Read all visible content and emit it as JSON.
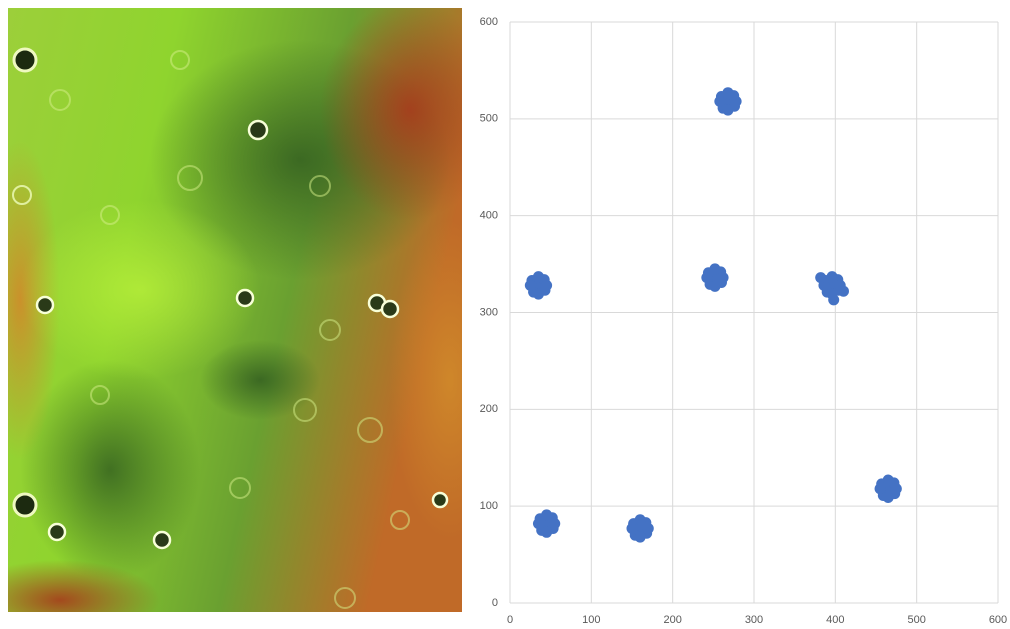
{
  "chart_data": {
    "type": "scatter",
    "x": [
      268,
      260,
      275,
      262,
      276,
      268,
      268,
      258,
      278,
      35,
      27,
      42,
      29,
      43,
      35,
      35,
      25,
      45,
      252,
      244,
      259,
      246,
      260,
      252,
      252,
      242,
      262,
      396,
      388,
      403,
      390,
      404,
      396,
      396,
      386,
      406,
      382,
      410,
      398,
      465,
      457,
      472,
      459,
      473,
      465,
      465,
      455,
      475,
      45,
      37,
      52,
      39,
      53,
      45,
      45,
      35,
      55,
      160,
      152,
      167,
      154,
      168,
      160,
      160,
      150,
      170
    ],
    "series": [
      {
        "color": "#4472c4",
        "values": [
          518,
          523,
          524,
          511,
          513,
          527,
          509,
          518,
          518,
          328,
          333,
          334,
          321,
          323,
          337,
          319,
          328,
          328,
          336,
          341,
          342,
          329,
          331,
          345,
          327,
          336,
          336,
          328,
          333,
          334,
          321,
          323,
          337,
          319,
          328,
          328,
          336,
          322,
          313,
          118,
          123,
          124,
          111,
          113,
          127,
          109,
          118,
          118,
          82,
          87,
          88,
          75,
          77,
          91,
          73,
          82,
          82,
          77,
          82,
          83,
          70,
          72,
          86,
          68,
          77,
          77
        ]
      }
    ],
    "xlim": [
      0,
      600
    ],
    "ylim": [
      0,
      600
    ],
    "xticks": [
      0,
      100,
      200,
      300,
      400,
      500,
      600
    ],
    "yticks": [
      0,
      100,
      200,
      300,
      400,
      500,
      600
    ],
    "grid": true
  }
}
